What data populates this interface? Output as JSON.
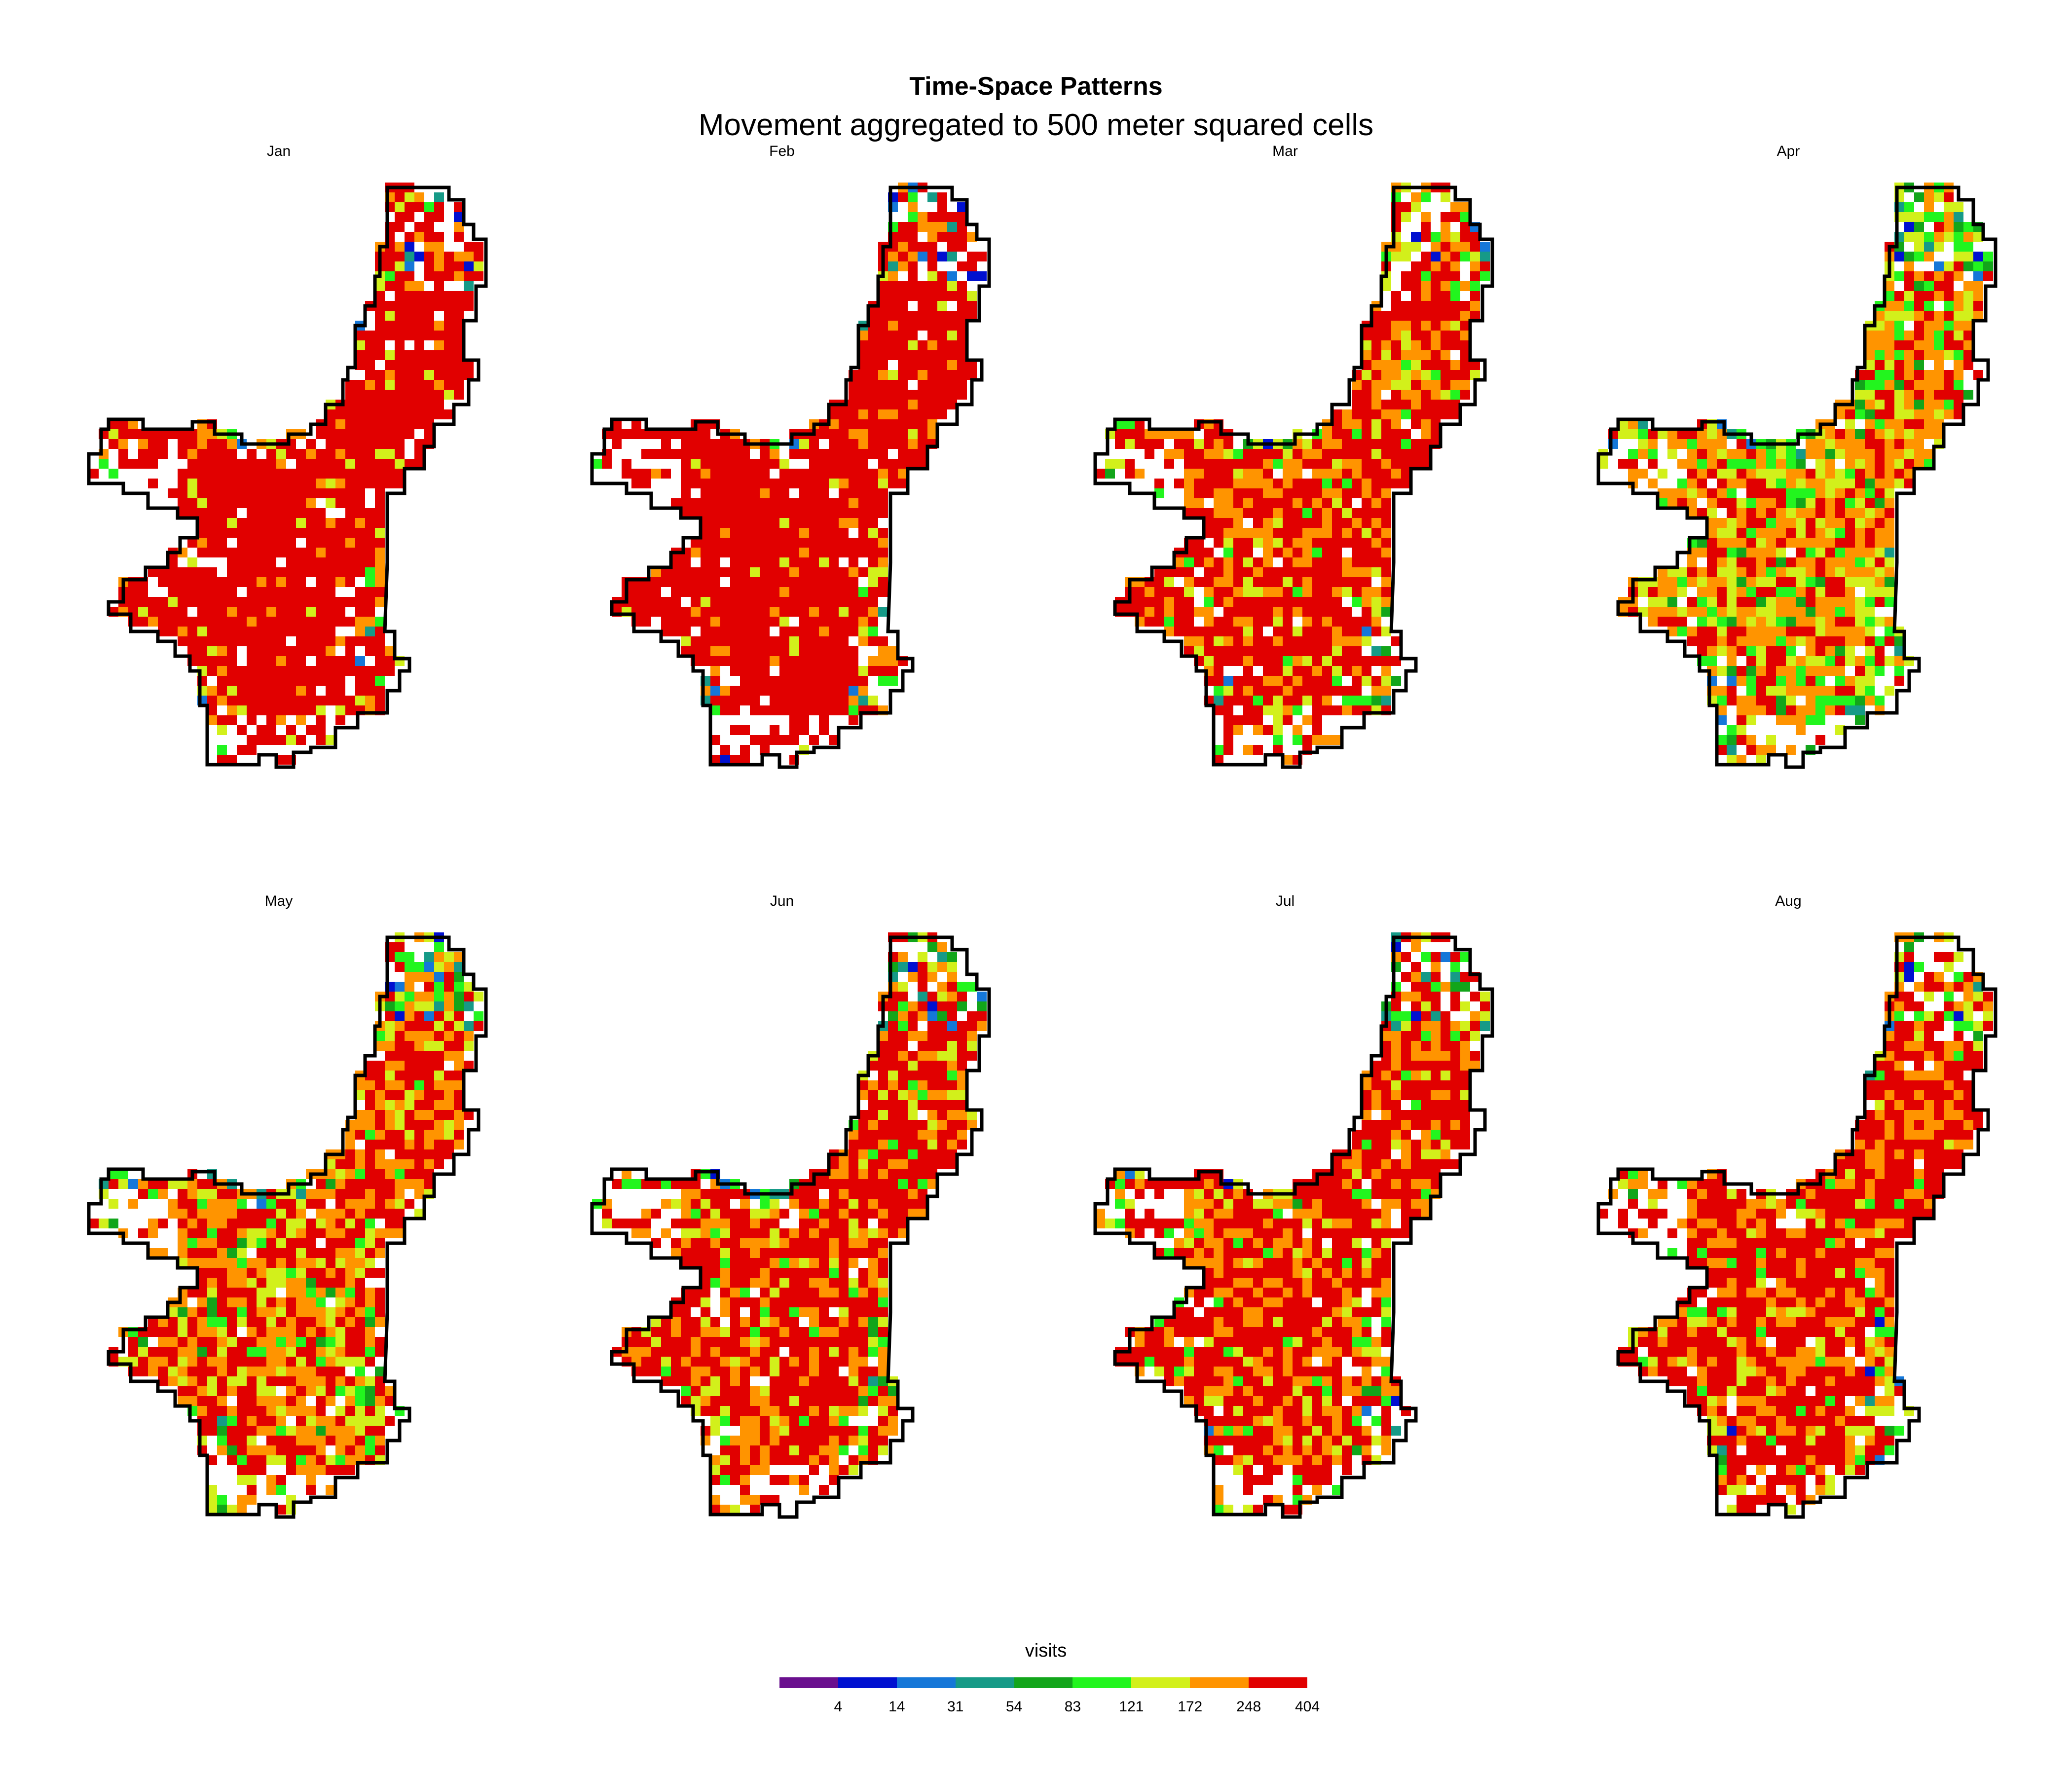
{
  "title": "Time-Space Patterns",
  "subtitle": "Movement aggregated to 500 meter squared cells",
  "panels": [
    {
      "label": "Jan",
      "pattern": "dense-red"
    },
    {
      "label": "Feb",
      "pattern": "dense-red"
    },
    {
      "label": "Mar",
      "pattern": "red-orange-mix"
    },
    {
      "label": "Apr",
      "pattern": "orange-green-mix"
    },
    {
      "label": "May",
      "pattern": "red-orange-yellow-mix"
    },
    {
      "label": "Jun",
      "pattern": "red-orange-mix"
    },
    {
      "label": "Jul",
      "pattern": "red-orange-mix"
    },
    {
      "label": "Aug",
      "pattern": "red-orange-mix"
    }
  ],
  "legend": {
    "title": "visits",
    "colors": [
      "#6a0f8e",
      "#0010d0",
      "#1577d8",
      "#169a87",
      "#12a51a",
      "#22f51e",
      "#d2f01b",
      "#ff9400",
      "#e10000"
    ],
    "ticks": [
      "4",
      "14",
      "31",
      "54",
      "83",
      "121",
      "172",
      "248",
      "404"
    ]
  }
}
